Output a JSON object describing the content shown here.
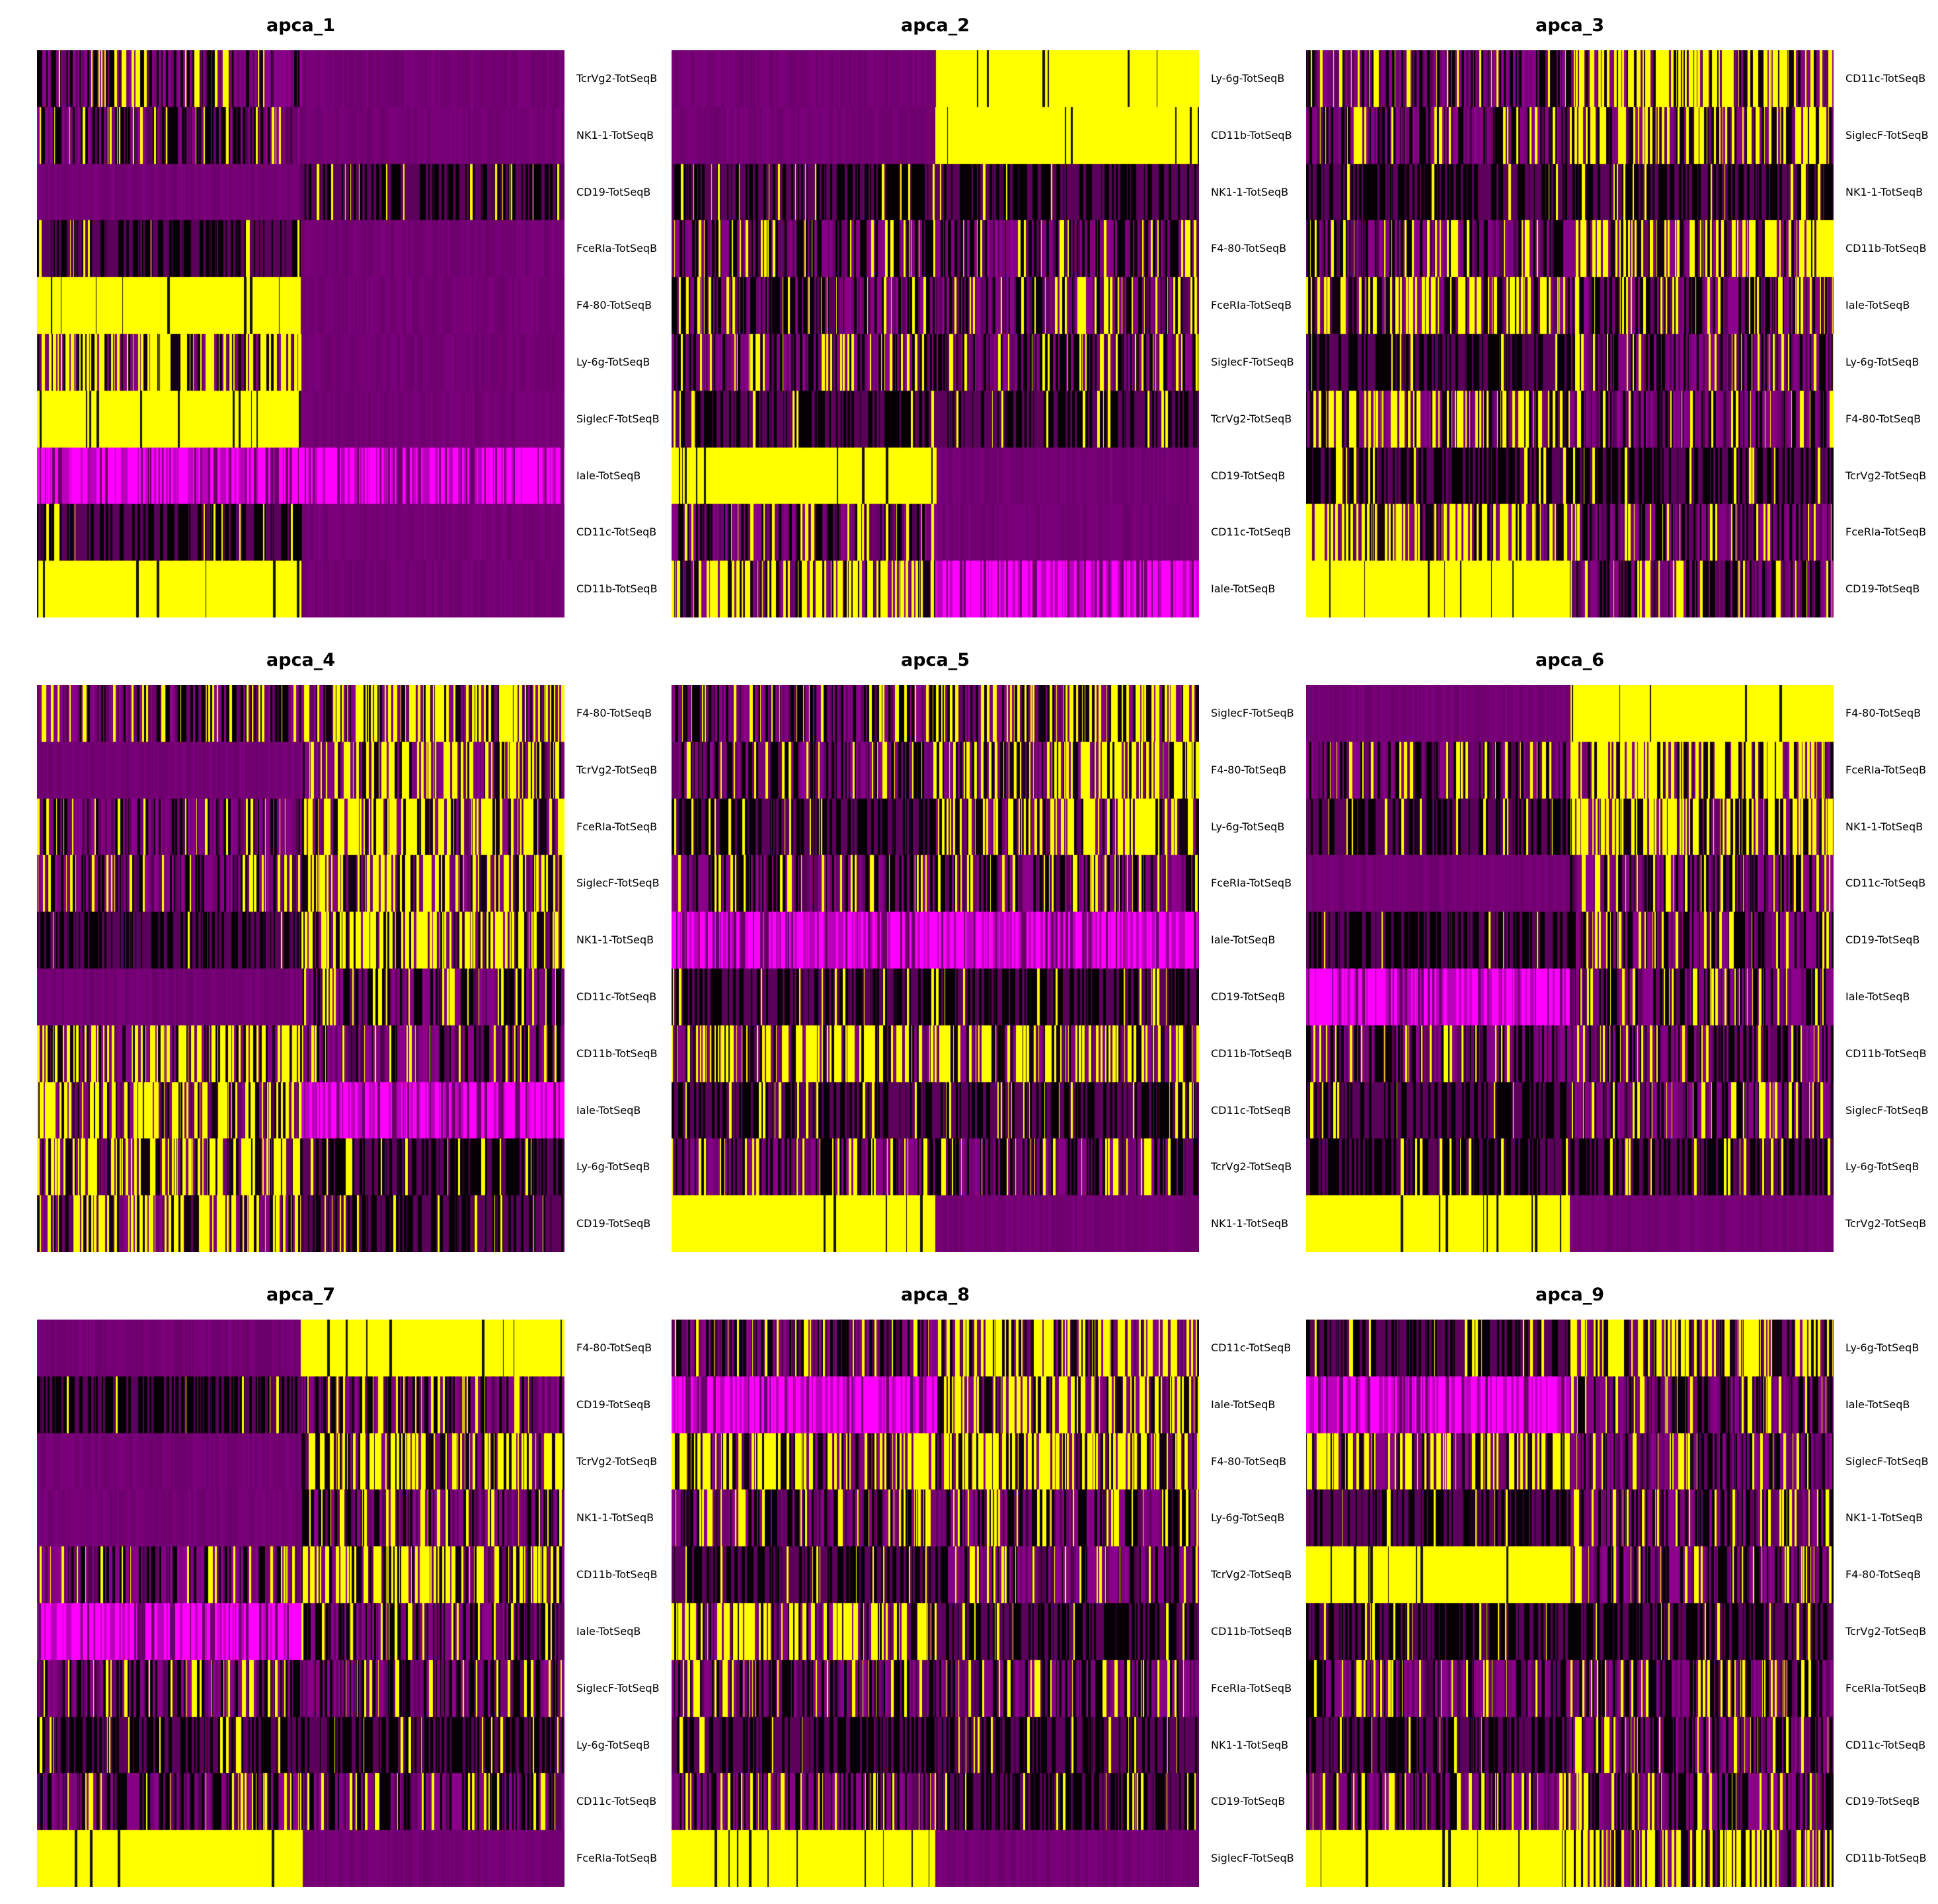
{
  "figure": {
    "background": "#ffffff"
  },
  "colors": {
    "low": "#ff00ff",
    "mid": "#000000",
    "high": "#ffff00",
    "base": "#800080"
  },
  "chart_data": [
    {
      "type": "heatmap",
      "title": "apca_1",
      "groups": 2,
      "split": 0.5,
      "rows": [
        "TcrVg2-TotSeqB",
        "NK1-1-TotSeqB",
        "CD19-TotSeqB",
        "FceRIa-TotSeqB",
        "F4-80-TotSeqB",
        "Ly-6g-TotSeqB",
        "SiglecF-TotSeqB",
        "Iale-TotSeqB",
        "CD11c-TotSeqB",
        "CD11b-TotSeqB"
      ],
      "profiles": [
        [
          "mix",
          "flat"
        ],
        [
          "mix",
          "flat"
        ],
        [
          "flat",
          "dark"
        ],
        [
          "dark",
          "flat"
        ],
        [
          "yellow",
          "flat"
        ],
        [
          "yellowmix",
          "flat"
        ],
        [
          "yellow",
          "flat"
        ],
        [
          "magenta",
          "magenta"
        ],
        [
          "dark",
          "flat"
        ],
        [
          "yellow",
          "flat"
        ]
      ]
    },
    {
      "type": "heatmap",
      "title": "apca_2",
      "groups": 2,
      "split": 0.5,
      "rows": [
        "Ly-6g-TotSeqB",
        "CD11b-TotSeqB",
        "NK1-1-TotSeqB",
        "F4-80-TotSeqB",
        "FceRIa-TotSeqB",
        "SiglecF-TotSeqB",
        "TcrVg2-TotSeqB",
        "CD19-TotSeqB",
        "CD11c-TotSeqB",
        "Iale-TotSeqB"
      ],
      "profiles": [
        [
          "flat",
          "yellow"
        ],
        [
          "flat",
          "yellow"
        ],
        [
          "dark",
          "dark"
        ],
        [
          "mix",
          "mix"
        ],
        [
          "mix",
          "mix"
        ],
        [
          "mix",
          "mix"
        ],
        [
          "dark",
          "dark"
        ],
        [
          "yellow",
          "flat"
        ],
        [
          "mix",
          "flat"
        ],
        [
          "yellowmix",
          "magenta"
        ]
      ]
    },
    {
      "type": "heatmap",
      "title": "apca_3",
      "groups": 2,
      "split": 0.5,
      "rows": [
        "CD11c-TotSeqB",
        "SiglecF-TotSeqB",
        "NK1-1-TotSeqB",
        "CD11b-TotSeqB",
        "Iale-TotSeqB",
        "Ly-6g-TotSeqB",
        "F4-80-TotSeqB",
        "TcrVg2-TotSeqB",
        "FceRIa-TotSeqB",
        "CD19-TotSeqB"
      ],
      "profiles": [
        [
          "mix",
          "yellowmix"
        ],
        [
          "mix",
          "yellowmix"
        ],
        [
          "dark",
          "dark"
        ],
        [
          "mix",
          "yellowmix"
        ],
        [
          "yellowmix",
          "mix"
        ],
        [
          "dark",
          "mix"
        ],
        [
          "yellowmix",
          "mix"
        ],
        [
          "dark",
          "dark"
        ],
        [
          "yellowmix",
          "mix"
        ],
        [
          "yellow",
          "mix"
        ]
      ]
    },
    {
      "type": "heatmap",
      "title": "apca_4",
      "groups": 2,
      "split": 0.5,
      "rows": [
        "F4-80-TotSeqB",
        "TcrVg2-TotSeqB",
        "FceRIa-TotSeqB",
        "SiglecF-TotSeqB",
        "NK1-1-TotSeqB",
        "CD11c-TotSeqB",
        "CD11b-TotSeqB",
        "Iale-TotSeqB",
        "Ly-6g-TotSeqB",
        "CD19-TotSeqB"
      ],
      "profiles": [
        [
          "mix",
          "yellowmix"
        ],
        [
          "flat",
          "yellowmix"
        ],
        [
          "mix",
          "yellowmix"
        ],
        [
          "mix",
          "yellowmix"
        ],
        [
          "dark",
          "yellowmix"
        ],
        [
          "flat",
          "mix"
        ],
        [
          "yellowmix",
          "mix"
        ],
        [
          "yellowmix",
          "magenta"
        ],
        [
          "yellowmix",
          "dark"
        ],
        [
          "yellowmix",
          "dark"
        ]
      ]
    },
    {
      "type": "heatmap",
      "title": "apca_5",
      "groups": 2,
      "split": 0.5,
      "rows": [
        "SiglecF-TotSeqB",
        "F4-80-TotSeqB",
        "Ly-6g-TotSeqB",
        "FceRIa-TotSeqB",
        "Iale-TotSeqB",
        "CD19-TotSeqB",
        "CD11b-TotSeqB",
        "CD11c-TotSeqB",
        "TcrVg2-TotSeqB",
        "NK1-1-TotSeqB"
      ],
      "profiles": [
        [
          "mix",
          "yellowmix"
        ],
        [
          "mix",
          "yellowmix"
        ],
        [
          "dark",
          "yellowmix"
        ],
        [
          "mix",
          "mix"
        ],
        [
          "magenta",
          "magenta"
        ],
        [
          "dark",
          "dark"
        ],
        [
          "yellowmix",
          "yellowmix"
        ],
        [
          "dark",
          "dark"
        ],
        [
          "mix",
          "mix"
        ],
        [
          "yellow",
          "flat"
        ]
      ]
    },
    {
      "type": "heatmap",
      "title": "apca_6",
      "groups": 2,
      "split": 0.5,
      "rows": [
        "F4-80-TotSeqB",
        "FceRIa-TotSeqB",
        "NK1-1-TotSeqB",
        "CD11c-TotSeqB",
        "CD19-TotSeqB",
        "Iale-TotSeqB",
        "CD11b-TotSeqB",
        "SiglecF-TotSeqB",
        "Ly-6g-TotSeqB",
        "TcrVg2-TotSeqB"
      ],
      "profiles": [
        [
          "flat",
          "yellow"
        ],
        [
          "mix",
          "yellowmix"
        ],
        [
          "dark",
          "yellowmix"
        ],
        [
          "flat",
          "mix"
        ],
        [
          "dark",
          "mix"
        ],
        [
          "magenta",
          "mix"
        ],
        [
          "mix",
          "mix"
        ],
        [
          "dark",
          "mix"
        ],
        [
          "dark",
          "dark"
        ],
        [
          "yellow",
          "flat"
        ]
      ]
    },
    {
      "type": "heatmap",
      "title": "apca_7",
      "groups": 2,
      "split": 0.5,
      "rows": [
        "F4-80-TotSeqB",
        "CD19-TotSeqB",
        "TcrVg2-TotSeqB",
        "NK1-1-TotSeqB",
        "CD11b-TotSeqB",
        "Iale-TotSeqB",
        "SiglecF-TotSeqB",
        "Ly-6g-TotSeqB",
        "CD11c-TotSeqB",
        "FceRIa-TotSeqB"
      ],
      "profiles": [
        [
          "flat",
          "yellow"
        ],
        [
          "dark",
          "mix"
        ],
        [
          "flat",
          "yellowmix"
        ],
        [
          "flat",
          "mix"
        ],
        [
          "mix",
          "yellowmix"
        ],
        [
          "magenta",
          "mix"
        ],
        [
          "mix",
          "mix"
        ],
        [
          "dark",
          "dark"
        ],
        [
          "mix",
          "mix"
        ],
        [
          "yellow",
          "flat"
        ]
      ]
    },
    {
      "type": "heatmap",
      "title": "apca_8",
      "groups": 2,
      "split": 0.5,
      "rows": [
        "CD11c-TotSeqB",
        "Iale-TotSeqB",
        "F4-80-TotSeqB",
        "Ly-6g-TotSeqB",
        "TcrVg2-TotSeqB",
        "CD11b-TotSeqB",
        "FceRIa-TotSeqB",
        "NK1-1-TotSeqB",
        "CD19-TotSeqB",
        "SiglecF-TotSeqB"
      ],
      "profiles": [
        [
          "mix",
          "yellowmix"
        ],
        [
          "magenta",
          "yellowmix"
        ],
        [
          "yellowmix",
          "yellowmix"
        ],
        [
          "mix",
          "mix"
        ],
        [
          "dark",
          "mix"
        ],
        [
          "yellowmix",
          "dark"
        ],
        [
          "mix",
          "mix"
        ],
        [
          "dark",
          "dark"
        ],
        [
          "mix",
          "dark"
        ],
        [
          "yellow",
          "flat"
        ]
      ]
    },
    {
      "type": "heatmap",
      "title": "apca_9",
      "groups": 2,
      "split": 0.5,
      "rows": [
        "Ly-6g-TotSeqB",
        "Iale-TotSeqB",
        "SiglecF-TotSeqB",
        "NK1-1-TotSeqB",
        "F4-80-TotSeqB",
        "TcrVg2-TotSeqB",
        "FceRIa-TotSeqB",
        "CD11c-TotSeqB",
        "CD19-TotSeqB",
        "CD11b-TotSeqB"
      ],
      "profiles": [
        [
          "dark",
          "yellowmix"
        ],
        [
          "magenta",
          "mix"
        ],
        [
          "yellowmix",
          "mix"
        ],
        [
          "dark",
          "mix"
        ],
        [
          "yellow",
          "mix"
        ],
        [
          "dark",
          "dark"
        ],
        [
          "mix",
          "mix"
        ],
        [
          "dark",
          "mix"
        ],
        [
          "mix",
          "mix"
        ],
        [
          "yellow",
          "yellowmix"
        ]
      ]
    }
  ]
}
